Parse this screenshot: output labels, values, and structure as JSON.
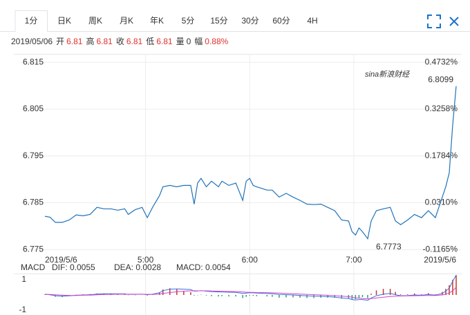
{
  "tabs": {
    "items": [
      "1分",
      "日K",
      "周K",
      "月K",
      "年K",
      "5分",
      "15分",
      "30分",
      "60分",
      "4H"
    ],
    "active": 0
  },
  "info": {
    "date": "2019/05/06",
    "items": [
      {
        "label": "开",
        "value": "6.81"
      },
      {
        "label": "高",
        "value": "6.81"
      },
      {
        "label": "收",
        "value": "6.81"
      },
      {
        "label": "低",
        "value": "6.81"
      },
      {
        "label": "量",
        "value": "0"
      },
      {
        "label": "幅",
        "value": "0.88%"
      }
    ]
  },
  "chart_data": [
    {
      "type": "line",
      "watermark": "sina新浪财经",
      "high_label": "6.8099",
      "low_label": "6.7773",
      "x": [
        "4:02",
        "4:05",
        "4:08",
        "4:12",
        "4:16",
        "4:20",
        "4:24",
        "4:28",
        "4:32",
        "4:36",
        "4:40",
        "4:44",
        "4:48",
        "4:50",
        "4:54",
        "4:58",
        "5:01",
        "5:04",
        "5:08",
        "5:10",
        "5:14",
        "5:18",
        "5:22",
        "5:26",
        "5:28",
        "5:30",
        "5:32",
        "5:35",
        "5:38",
        "5:42",
        "5:44",
        "5:48",
        "5:52",
        "5:56",
        "5:58",
        "6:00",
        "6:02",
        "6:04",
        "6:10",
        "6:13",
        "6:17",
        "6:21",
        "6:25",
        "6:29",
        "6:33",
        "6:37",
        "6:41",
        "6:45",
        "6:49",
        "6:53",
        "6:57",
        "6:59",
        "7:01",
        "7:03",
        "7:05",
        "7:08",
        "7:10",
        "7:13",
        "7:17",
        "7:21",
        "7:24",
        "7:27",
        "7:31",
        "7:35",
        "7:39",
        "7:43",
        "7:47",
        "7:51",
        "7:53",
        "7:55",
        "7:57",
        "7:59"
      ],
      "series": [
        {
          "color": "#1f72b8",
          "values": [
            6.7821,
            6.7819,
            6.7808,
            6.7808,
            6.7813,
            6.7824,
            6.7822,
            6.7825,
            6.784,
            6.7837,
            6.7837,
            6.7834,
            6.7837,
            6.7825,
            6.7835,
            6.784,
            6.7818,
            6.784,
            6.7865,
            6.7884,
            6.7887,
            6.7884,
            6.7887,
            6.7887,
            6.7847,
            6.7892,
            6.7902,
            6.7884,
            6.7896,
            6.7884,
            6.7896,
            6.7887,
            6.7892,
            6.7855,
            6.7896,
            6.7902,
            6.7887,
            6.7884,
            6.7877,
            6.7877,
            6.7862,
            6.787,
            6.7862,
            6.7855,
            6.7847,
            6.7846,
            6.7847,
            6.784,
            6.7833,
            6.7813,
            6.7811,
            6.7788,
            6.7781,
            6.7796,
            6.7788,
            6.7773,
            6.7811,
            6.7833,
            6.7837,
            6.784,
            6.7811,
            6.7803,
            6.7813,
            6.7825,
            6.7818,
            6.7833,
            6.7818,
            6.7862,
            6.7884,
            6.7914,
            6.8017,
            6.8099
          ]
        }
      ],
      "xlim": [
        "4:02",
        "7:59"
      ],
      "xticks": [
        {
          "value": "4:02",
          "label": "2019/5/6"
        },
        "5:00",
        "6:00",
        "7:00",
        {
          "value": "7:59",
          "label": "2019/5/6"
        }
      ],
      "ylim": [
        6.7737,
        6.8168
      ],
      "yticks": [
        6.815,
        6.805,
        6.795,
        6.785,
        6.775
      ],
      "y2lim": [
        -0.1356,
        0.4998
      ],
      "y2ticks": [
        {
          "value": 0.4732,
          "label": "0.4732%"
        },
        {
          "value": 0.3258,
          "label": "0.3258%"
        },
        {
          "value": 0.1784,
          "label": "0.1784%"
        },
        {
          "value": 0.031,
          "label": "0.0310%"
        },
        {
          "value": -0.1165,
          "label": "-0.1165%"
        }
      ],
      "grid": true
    },
    {
      "type": "macd",
      "title": "MACD",
      "x": [
        "4:02",
        "4:05",
        "4:08",
        "4:12",
        "4:16",
        "4:20",
        "4:24",
        "4:28",
        "4:32",
        "4:36",
        "4:40",
        "4:44",
        "4:48",
        "4:50",
        "4:54",
        "4:58",
        "5:01",
        "5:04",
        "5:08",
        "5:10",
        "5:14",
        "5:18",
        "5:22",
        "5:26",
        "5:28",
        "5:30",
        "5:32",
        "5:35",
        "5:38",
        "5:42",
        "5:44",
        "5:48",
        "5:52",
        "5:56",
        "5:58",
        "6:00",
        "6:02",
        "6:04",
        "6:10",
        "6:13",
        "6:17",
        "6:21",
        "6:25",
        "6:29",
        "6:33",
        "6:37",
        "6:41",
        "6:45",
        "6:49",
        "6:53",
        "6:57",
        "6:59",
        "7:01",
        "7:03",
        "7:05",
        "7:08",
        "7:10",
        "7:13",
        "7:17",
        "7:21",
        "7:24",
        "7:27",
        "7:31",
        "7:35",
        "7:39",
        "7:43",
        "7:47",
        "7:51",
        "7:53",
        "7:55",
        "7:57",
        "7:59"
      ],
      "xlim": [
        "4:02",
        "7:59"
      ],
      "xticks": [
        "5:00",
        "6:00",
        "7:00"
      ],
      "ylim": [
        -1.27,
        1.36
      ],
      "yticks": [
        1,
        -1
      ],
      "grid": false,
      "series": [
        {
          "name": "MACD: 0.0054",
          "style": "bars",
          "color": "#c0392b",
          "down_color": "#2e9e6e",
          "values": [
            0.04,
            -0.02,
            -0.12,
            -0.14,
            -0.06,
            0.02,
            0.04,
            0.06,
            0.1,
            0.1,
            0.08,
            0.04,
            0.04,
            -0.02,
            -0.02,
            0,
            -0.04,
            0.02,
            0.18,
            0.36,
            0.44,
            0.38,
            0.26,
            0.18,
            -0.04,
            -0.02,
            0.02,
            -0.04,
            -0.08,
            -0.1,
            -0.08,
            -0.1,
            -0.1,
            -0.2,
            -0.12,
            -0.04,
            -0.06,
            -0.08,
            -0.1,
            -0.12,
            -0.18,
            -0.16,
            -0.16,
            -0.18,
            -0.2,
            -0.2,
            -0.18,
            -0.18,
            -0.18,
            -0.24,
            -0.24,
            -0.3,
            -0.28,
            -0.18,
            -0.14,
            -0.2,
            0.08,
            0.3,
            0.4,
            0.4,
            0.2,
            0.04,
            0.04,
            0.1,
            0.04,
            0.12,
            0.04,
            0.2,
            0.4,
            0.64,
            1.0,
            1.3
          ]
        },
        {
          "name": "DIF: 0.0055",
          "style": "line",
          "color": "#3a6fd8",
          "values": [
            0.05,
            0.02,
            -0.05,
            -0.08,
            -0.06,
            -0.02,
            0,
            0.02,
            0.06,
            0.08,
            0.08,
            0.07,
            0.07,
            0.04,
            0.04,
            0.05,
            0.02,
            0.05,
            0.15,
            0.28,
            0.38,
            0.4,
            0.38,
            0.36,
            0.25,
            0.26,
            0.28,
            0.25,
            0.22,
            0.2,
            0.2,
            0.18,
            0.17,
            0.1,
            0.12,
            0.15,
            0.14,
            0.12,
            0.1,
            0.08,
            0.03,
            0.02,
            0,
            -0.03,
            -0.06,
            -0.08,
            -0.09,
            -0.11,
            -0.14,
            -0.2,
            -0.23,
            -0.3,
            -0.33,
            -0.3,
            -0.3,
            -0.35,
            -0.2,
            -0.05,
            0.05,
            0.1,
            0.02,
            -0.05,
            -0.04,
            0,
            -0.02,
            0.03,
            -0.01,
            0.1,
            0.25,
            0.45,
            0.9,
            1.3
          ]
        },
        {
          "name": "DEA: 0.0028",
          "style": "line",
          "color": "#d33fd3",
          "values": [
            0.03,
            0.03,
            0.01,
            -0.01,
            -0.03,
            -0.03,
            -0.02,
            -0.01,
            0.01,
            0.03,
            0.04,
            0.05,
            0.05,
            0.05,
            0.05,
            0.05,
            0.04,
            0.04,
            0.06,
            0.1,
            0.16,
            0.21,
            0.25,
            0.27,
            0.27,
            0.27,
            0.27,
            0.27,
            0.26,
            0.25,
            0.24,
            0.23,
            0.22,
            0.2,
            0.18,
            0.17,
            0.17,
            0.16,
            0.15,
            0.14,
            0.12,
            0.1,
            0.08,
            0.06,
            0.04,
            0.02,
            0,
            -0.02,
            -0.05,
            -0.08,
            -0.11,
            -0.15,
            -0.19,
            -0.21,
            -0.23,
            -0.25,
            -0.24,
            -0.2,
            -0.15,
            -0.1,
            -0.08,
            -0.07,
            -0.06,
            -0.05,
            -0.04,
            -0.03,
            -0.03,
            0,
            0.05,
            0.13,
            0.28,
            0.5
          ]
        }
      ]
    }
  ]
}
